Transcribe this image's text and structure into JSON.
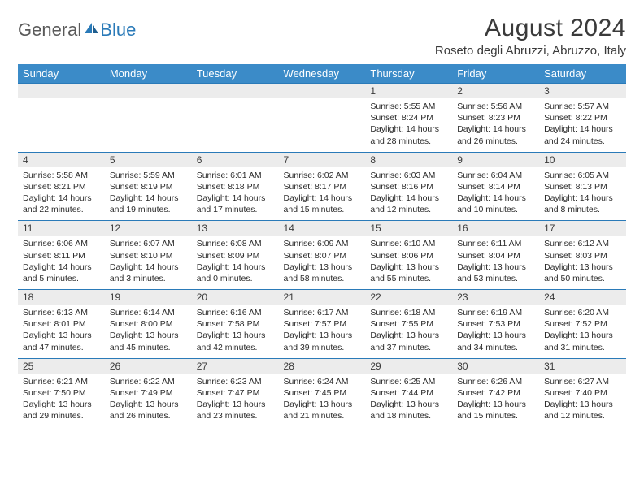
{
  "brand": {
    "part1": "General",
    "part2": "Blue"
  },
  "title": "August 2024",
  "location": "Roseto degli Abruzzi, Abruzzo, Italy",
  "colors": {
    "header_bg": "#3b8bc8",
    "header_text": "#ffffff",
    "divider": "#2a7ab8",
    "daynum_bg": "#ececec",
    "body_text": "#2b2b2b",
    "brand_gray": "#5a5a5a",
    "brand_blue": "#2a7ab8",
    "page_bg": "#ffffff"
  },
  "typography": {
    "title_size_pt": 30,
    "location_size_pt": 15,
    "dayhead_size_pt": 13,
    "daynum_size_pt": 12,
    "cell_size_pt": 10.5
  },
  "day_headers": [
    "Sunday",
    "Monday",
    "Tuesday",
    "Wednesday",
    "Thursday",
    "Friday",
    "Saturday"
  ],
  "weeks": [
    [
      {
        "n": "",
        "sunrise": "",
        "sunset": "",
        "daylight1": "",
        "daylight2": ""
      },
      {
        "n": "",
        "sunrise": "",
        "sunset": "",
        "daylight1": "",
        "daylight2": ""
      },
      {
        "n": "",
        "sunrise": "",
        "sunset": "",
        "daylight1": "",
        "daylight2": ""
      },
      {
        "n": "",
        "sunrise": "",
        "sunset": "",
        "daylight1": "",
        "daylight2": ""
      },
      {
        "n": "1",
        "sunrise": "Sunrise: 5:55 AM",
        "sunset": "Sunset: 8:24 PM",
        "daylight1": "Daylight: 14 hours",
        "daylight2": "and 28 minutes."
      },
      {
        "n": "2",
        "sunrise": "Sunrise: 5:56 AM",
        "sunset": "Sunset: 8:23 PM",
        "daylight1": "Daylight: 14 hours",
        "daylight2": "and 26 minutes."
      },
      {
        "n": "3",
        "sunrise": "Sunrise: 5:57 AM",
        "sunset": "Sunset: 8:22 PM",
        "daylight1": "Daylight: 14 hours",
        "daylight2": "and 24 minutes."
      }
    ],
    [
      {
        "n": "4",
        "sunrise": "Sunrise: 5:58 AM",
        "sunset": "Sunset: 8:21 PM",
        "daylight1": "Daylight: 14 hours",
        "daylight2": "and 22 minutes."
      },
      {
        "n": "5",
        "sunrise": "Sunrise: 5:59 AM",
        "sunset": "Sunset: 8:19 PM",
        "daylight1": "Daylight: 14 hours",
        "daylight2": "and 19 minutes."
      },
      {
        "n": "6",
        "sunrise": "Sunrise: 6:01 AM",
        "sunset": "Sunset: 8:18 PM",
        "daylight1": "Daylight: 14 hours",
        "daylight2": "and 17 minutes."
      },
      {
        "n": "7",
        "sunrise": "Sunrise: 6:02 AM",
        "sunset": "Sunset: 8:17 PM",
        "daylight1": "Daylight: 14 hours",
        "daylight2": "and 15 minutes."
      },
      {
        "n": "8",
        "sunrise": "Sunrise: 6:03 AM",
        "sunset": "Sunset: 8:16 PM",
        "daylight1": "Daylight: 14 hours",
        "daylight2": "and 12 minutes."
      },
      {
        "n": "9",
        "sunrise": "Sunrise: 6:04 AM",
        "sunset": "Sunset: 8:14 PM",
        "daylight1": "Daylight: 14 hours",
        "daylight2": "and 10 minutes."
      },
      {
        "n": "10",
        "sunrise": "Sunrise: 6:05 AM",
        "sunset": "Sunset: 8:13 PM",
        "daylight1": "Daylight: 14 hours",
        "daylight2": "and 8 minutes."
      }
    ],
    [
      {
        "n": "11",
        "sunrise": "Sunrise: 6:06 AM",
        "sunset": "Sunset: 8:11 PM",
        "daylight1": "Daylight: 14 hours",
        "daylight2": "and 5 minutes."
      },
      {
        "n": "12",
        "sunrise": "Sunrise: 6:07 AM",
        "sunset": "Sunset: 8:10 PM",
        "daylight1": "Daylight: 14 hours",
        "daylight2": "and 3 minutes."
      },
      {
        "n": "13",
        "sunrise": "Sunrise: 6:08 AM",
        "sunset": "Sunset: 8:09 PM",
        "daylight1": "Daylight: 14 hours",
        "daylight2": "and 0 minutes."
      },
      {
        "n": "14",
        "sunrise": "Sunrise: 6:09 AM",
        "sunset": "Sunset: 8:07 PM",
        "daylight1": "Daylight: 13 hours",
        "daylight2": "and 58 minutes."
      },
      {
        "n": "15",
        "sunrise": "Sunrise: 6:10 AM",
        "sunset": "Sunset: 8:06 PM",
        "daylight1": "Daylight: 13 hours",
        "daylight2": "and 55 minutes."
      },
      {
        "n": "16",
        "sunrise": "Sunrise: 6:11 AM",
        "sunset": "Sunset: 8:04 PM",
        "daylight1": "Daylight: 13 hours",
        "daylight2": "and 53 minutes."
      },
      {
        "n": "17",
        "sunrise": "Sunrise: 6:12 AM",
        "sunset": "Sunset: 8:03 PM",
        "daylight1": "Daylight: 13 hours",
        "daylight2": "and 50 minutes."
      }
    ],
    [
      {
        "n": "18",
        "sunrise": "Sunrise: 6:13 AM",
        "sunset": "Sunset: 8:01 PM",
        "daylight1": "Daylight: 13 hours",
        "daylight2": "and 47 minutes."
      },
      {
        "n": "19",
        "sunrise": "Sunrise: 6:14 AM",
        "sunset": "Sunset: 8:00 PM",
        "daylight1": "Daylight: 13 hours",
        "daylight2": "and 45 minutes."
      },
      {
        "n": "20",
        "sunrise": "Sunrise: 6:16 AM",
        "sunset": "Sunset: 7:58 PM",
        "daylight1": "Daylight: 13 hours",
        "daylight2": "and 42 minutes."
      },
      {
        "n": "21",
        "sunrise": "Sunrise: 6:17 AM",
        "sunset": "Sunset: 7:57 PM",
        "daylight1": "Daylight: 13 hours",
        "daylight2": "and 39 minutes."
      },
      {
        "n": "22",
        "sunrise": "Sunrise: 6:18 AM",
        "sunset": "Sunset: 7:55 PM",
        "daylight1": "Daylight: 13 hours",
        "daylight2": "and 37 minutes."
      },
      {
        "n": "23",
        "sunrise": "Sunrise: 6:19 AM",
        "sunset": "Sunset: 7:53 PM",
        "daylight1": "Daylight: 13 hours",
        "daylight2": "and 34 minutes."
      },
      {
        "n": "24",
        "sunrise": "Sunrise: 6:20 AM",
        "sunset": "Sunset: 7:52 PM",
        "daylight1": "Daylight: 13 hours",
        "daylight2": "and 31 minutes."
      }
    ],
    [
      {
        "n": "25",
        "sunrise": "Sunrise: 6:21 AM",
        "sunset": "Sunset: 7:50 PM",
        "daylight1": "Daylight: 13 hours",
        "daylight2": "and 29 minutes."
      },
      {
        "n": "26",
        "sunrise": "Sunrise: 6:22 AM",
        "sunset": "Sunset: 7:49 PM",
        "daylight1": "Daylight: 13 hours",
        "daylight2": "and 26 minutes."
      },
      {
        "n": "27",
        "sunrise": "Sunrise: 6:23 AM",
        "sunset": "Sunset: 7:47 PM",
        "daylight1": "Daylight: 13 hours",
        "daylight2": "and 23 minutes."
      },
      {
        "n": "28",
        "sunrise": "Sunrise: 6:24 AM",
        "sunset": "Sunset: 7:45 PM",
        "daylight1": "Daylight: 13 hours",
        "daylight2": "and 21 minutes."
      },
      {
        "n": "29",
        "sunrise": "Sunrise: 6:25 AM",
        "sunset": "Sunset: 7:44 PM",
        "daylight1": "Daylight: 13 hours",
        "daylight2": "and 18 minutes."
      },
      {
        "n": "30",
        "sunrise": "Sunrise: 6:26 AM",
        "sunset": "Sunset: 7:42 PM",
        "daylight1": "Daylight: 13 hours",
        "daylight2": "and 15 minutes."
      },
      {
        "n": "31",
        "sunrise": "Sunrise: 6:27 AM",
        "sunset": "Sunset: 7:40 PM",
        "daylight1": "Daylight: 13 hours",
        "daylight2": "and 12 minutes."
      }
    ]
  ]
}
